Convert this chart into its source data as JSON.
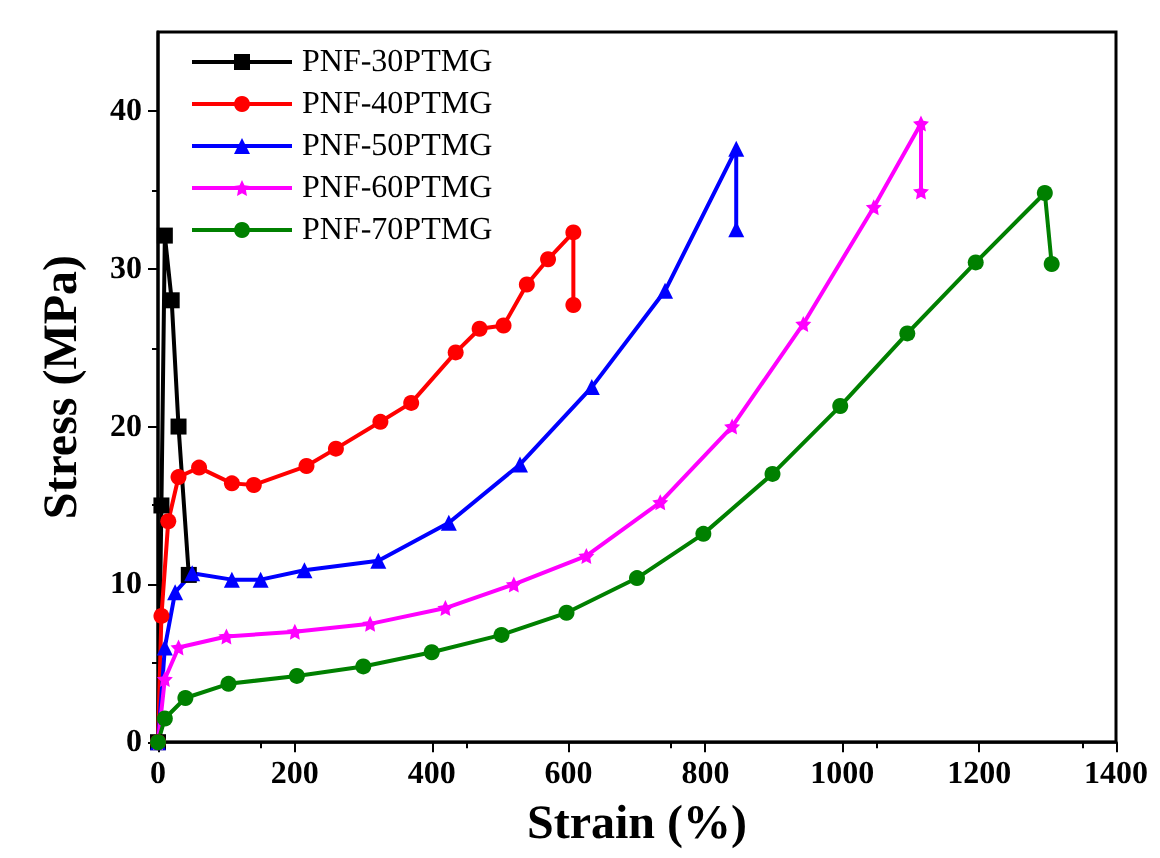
{
  "chart_data": {
    "type": "line",
    "xlabel": "Strain (%)",
    "ylabel": "Stress (MPa)",
    "xlim": [
      0,
      1400
    ],
    "xticks": [
      0,
      200,
      400,
      600,
      800,
      1000,
      1200,
      1400
    ],
    "ylim": [
      0,
      45
    ],
    "yticks": [
      0,
      10,
      20,
      30,
      40
    ],
    "grid": false,
    "legend": "top left",
    "line_style": "solid",
    "series": [
      {
        "name": "PNF-30PTMG",
        "color": "#000000",
        "marker": "square",
        "x": [
          0,
          5,
          10,
          20,
          30,
          45
        ],
        "values": [
          0,
          15,
          32.1,
          28,
          20,
          10.6
        ]
      },
      {
        "name": "PNF-40PTMG",
        "color": "#ff0000",
        "marker": "circle",
        "x": [
          0,
          5,
          15,
          30,
          60,
          108,
          140,
          217,
          260,
          325,
          370,
          435,
          470,
          505,
          539,
          570,
          607,
          607
        ],
        "values": [
          0,
          8,
          14,
          16.8,
          17.4,
          16.4,
          16.3,
          17.5,
          18.6,
          20.3,
          21.5,
          24.7,
          26.2,
          26.4,
          29,
          30.6,
          32.3,
          27.7
        ]
      },
      {
        "name": "PNF-50PTMG",
        "color": "#0000ff",
        "marker": "triangle",
        "x": [
          0,
          10,
          25,
          50,
          108,
          150,
          214,
          322,
          425,
          529,
          634,
          741,
          845,
          845
        ],
        "values": [
          0,
          6,
          9.5,
          10.7,
          10.3,
          10.3,
          10.9,
          11.5,
          13.9,
          17.6,
          22.5,
          28.6,
          37.6,
          32.5
        ]
      },
      {
        "name": "PNF-60PTMG",
        "color": "#ff00ff",
        "marker": "star",
        "x": [
          0,
          10,
          30,
          100,
          200,
          310,
          420,
          520,
          626,
          734,
          839,
          943,
          1046,
          1115,
          1115
        ],
        "values": [
          0,
          4,
          6,
          6.7,
          7,
          7.5,
          8.5,
          10,
          11.8,
          15.2,
          20,
          26.5,
          33.9,
          39.2,
          34.9
        ]
      },
      {
        "name": "PNF-70PTMG",
        "color": "#008000",
        "marker": "circle",
        "x": [
          0,
          10,
          40,
          103,
          203,
          300,
          400,
          502,
          597,
          700,
          797,
          898,
          997,
          1095,
          1195,
          1296,
          1306
        ],
        "values": [
          0,
          1.5,
          2.8,
          3.7,
          4.2,
          4.8,
          5.7,
          6.8,
          8.2,
          10.4,
          13.2,
          17,
          21.3,
          25.9,
          30.4,
          34.8,
          30.3
        ]
      }
    ]
  }
}
